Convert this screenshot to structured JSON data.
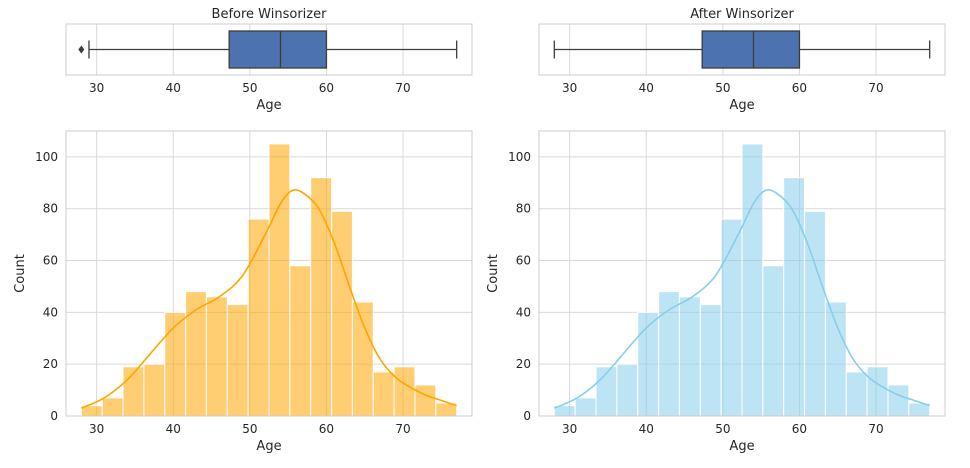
{
  "chart_data": [
    {
      "type": "box",
      "title": "Before Winsorizer",
      "xlabel": "Age",
      "xlim": [
        26,
        79
      ],
      "xticks": [
        30,
        40,
        50,
        60,
        70
      ],
      "grid": true,
      "box_color": "#4c72b0",
      "stats": {
        "whisker_low": 29,
        "q1": 47.3,
        "median": 54,
        "q3": 60,
        "whisker_high": 77
      },
      "outliers": [
        28
      ]
    },
    {
      "type": "box",
      "title": "After Winsorizer",
      "xlabel": "Age",
      "xlim": [
        26,
        79
      ],
      "xticks": [
        30,
        40,
        50,
        60,
        70
      ],
      "grid": true,
      "box_color": "#4c72b0",
      "stats": {
        "whisker_low": 28,
        "q1": 47.3,
        "median": 54,
        "q3": 60,
        "whisker_high": 77
      },
      "outliers": []
    },
    {
      "type": "histogram",
      "title": "",
      "xlabel": "Age",
      "ylabel": "Count",
      "xlim": [
        26,
        79
      ],
      "ylim": [
        0,
        110
      ],
      "xticks": [
        30,
        40,
        50,
        60,
        70
      ],
      "yticks": [
        0,
        20,
        40,
        60,
        80,
        100
      ],
      "grid": true,
      "color": "#ffa500",
      "bin_edges": [
        28,
        30.72,
        33.44,
        36.17,
        38.89,
        41.61,
        44.33,
        47.06,
        49.78,
        52.5,
        55.22,
        57.94,
        60.67,
        63.39,
        66.11,
        68.83,
        71.56,
        74.28,
        77
      ],
      "counts": [
        4,
        7,
        19,
        20,
        40,
        48,
        46,
        43,
        76,
        105,
        58,
        92,
        79,
        44,
        17,
        19,
        12,
        5
      ],
      "kde": {
        "x": [
          28,
          31,
          34,
          37,
          40,
          43,
          46,
          49,
          52,
          54,
          55.5,
          57,
          59,
          61,
          63,
          65,
          67,
          69,
          71,
          73,
          75,
          77
        ],
        "y": [
          3,
          7,
          14,
          24,
          34,
          41,
          46,
          54,
          70,
          82,
          87,
          86,
          80,
          67,
          50,
          34,
          22,
          15,
          11,
          8,
          6,
          4
        ]
      }
    },
    {
      "type": "histogram",
      "title": "",
      "xlabel": "Age",
      "ylabel": "Count",
      "xlim": [
        26,
        79
      ],
      "ylim": [
        0,
        110
      ],
      "xticks": [
        30,
        40,
        50,
        60,
        70
      ],
      "yticks": [
        0,
        20,
        40,
        60,
        80,
        100
      ],
      "grid": true,
      "color": "#87ceeb",
      "bin_edges": [
        28,
        30.72,
        33.44,
        36.17,
        38.89,
        41.61,
        44.33,
        47.06,
        49.78,
        52.5,
        55.22,
        57.94,
        60.67,
        63.39,
        66.11,
        68.83,
        71.56,
        74.28,
        77
      ],
      "counts": [
        4,
        7,
        19,
        20,
        40,
        48,
        46,
        43,
        76,
        105,
        58,
        92,
        79,
        44,
        17,
        19,
        12,
        5
      ],
      "kde": {
        "x": [
          28,
          31,
          34,
          37,
          40,
          43,
          46,
          49,
          52,
          54,
          55.5,
          57,
          59,
          61,
          63,
          65,
          67,
          69,
          71,
          73,
          75,
          77
        ],
        "y": [
          3,
          7,
          14,
          24,
          34,
          41,
          46,
          54,
          70,
          82,
          87,
          86,
          80,
          67,
          50,
          34,
          22,
          15,
          11,
          8,
          6,
          4
        ]
      }
    }
  ]
}
